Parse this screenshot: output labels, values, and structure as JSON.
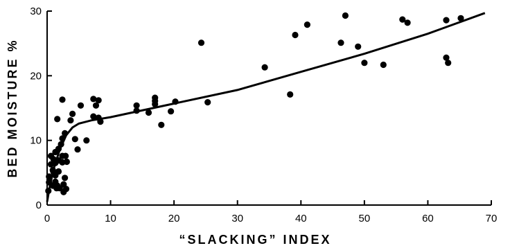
{
  "chart_data": {
    "type": "scatter",
    "xlabel": "“SLACKING” INDEX",
    "ylabel": "BED MOISTURE %",
    "xlim": [
      0,
      70
    ],
    "ylim": [
      0,
      30
    ],
    "x_ticks": [
      "0",
      "10",
      "20",
      "30",
      "40",
      "50",
      "60",
      "70"
    ],
    "y_ticks": [
      "0",
      "10",
      "20",
      "30"
    ],
    "grid": false,
    "series": [
      {
        "points": [
          [
            0.2,
            2.2
          ],
          [
            0.3,
            3.5
          ],
          [
            0.3,
            4.4
          ],
          [
            0.6,
            7.6
          ],
          [
            0.6,
            6.3
          ],
          [
            0.9,
            5.4
          ],
          [
            0.9,
            3.0
          ],
          [
            1.0,
            7.1
          ],
          [
            1.0,
            5.1
          ],
          [
            1.3,
            8.2
          ],
          [
            1.3,
            6.5
          ],
          [
            1.3,
            4.6
          ],
          [
            1.3,
            3.6
          ],
          [
            1.5,
            2.6
          ],
          [
            1.6,
            13.3
          ],
          [
            1.6,
            3.0
          ],
          [
            1.8,
            8.7
          ],
          [
            1.8,
            6.9
          ],
          [
            1.8,
            5.2
          ],
          [
            2.0,
            2.6
          ],
          [
            2.2,
            9.4
          ],
          [
            2.4,
            16.3
          ],
          [
            2.4,
            10.3
          ],
          [
            2.4,
            7.6
          ],
          [
            2.4,
            6.6
          ],
          [
            2.6,
            3.2
          ],
          [
            2.6,
            2.0
          ],
          [
            2.8,
            11.1
          ],
          [
            2.8,
            4.2
          ],
          [
            2.9,
            7.6
          ],
          [
            3.0,
            2.5
          ],
          [
            3.1,
            6.7
          ],
          [
            3.7,
            13.1
          ],
          [
            4.0,
            14.1
          ],
          [
            4.4,
            10.2
          ],
          [
            4.8,
            8.6
          ],
          [
            5.3,
            15.4
          ],
          [
            6.2,
            10.0
          ],
          [
            7.3,
            16.4
          ],
          [
            7.3,
            13.7
          ],
          [
            7.7,
            15.4
          ],
          [
            8.1,
            16.2
          ],
          [
            8.1,
            13.5
          ],
          [
            8.4,
            12.9
          ],
          [
            14.1,
            15.4
          ],
          [
            14.1,
            14.6
          ],
          [
            16.0,
            14.3
          ],
          [
            17.0,
            16.6
          ],
          [
            17.0,
            16.1
          ],
          [
            17.0,
            15.6
          ],
          [
            18.0,
            12.4
          ],
          [
            19.5,
            14.5
          ],
          [
            20.2,
            16.0
          ],
          [
            24.3,
            25.1
          ],
          [
            25.3,
            15.9
          ],
          [
            34.3,
            21.3
          ],
          [
            38.3,
            17.1
          ],
          [
            39.1,
            26.3
          ],
          [
            41.0,
            27.9
          ],
          [
            46.3,
            25.1
          ],
          [
            47.0,
            29.3
          ],
          [
            49.0,
            24.5
          ],
          [
            50.0,
            22.0
          ],
          [
            53.0,
            21.7
          ],
          [
            56.0,
            28.7
          ],
          [
            56.8,
            28.2
          ],
          [
            62.9,
            28.6
          ],
          [
            62.9,
            22.8
          ],
          [
            63.2,
            22.0
          ],
          [
            65.2,
            28.9
          ]
        ]
      }
    ],
    "fit_line": [
      [
        0,
        0.5
      ],
      [
        0.4,
        2.8
      ],
      [
        1,
        5.5
      ],
      [
        2,
        8.6
      ],
      [
        3,
        10.8
      ],
      [
        4,
        12.0
      ],
      [
        5,
        12.6
      ],
      [
        7,
        13.1
      ],
      [
        10,
        13.6
      ],
      [
        20,
        15.7
      ],
      [
        30,
        17.8
      ],
      [
        40,
        20.6
      ],
      [
        50,
        23.4
      ],
      [
        60,
        26.5
      ],
      [
        69,
        29.7
      ]
    ]
  }
}
